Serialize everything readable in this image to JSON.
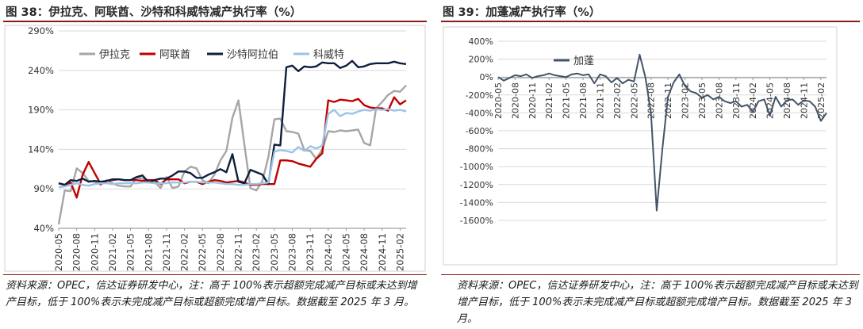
{
  "figures": {
    "left": {
      "title": "图 38：伊拉克、阿联酋、沙特和科威特减产执行率（%）",
      "note": "资料来源：OPEC，信达证券研发中心，注：高于 100%表示超额完成减产目标或未达到增产目标，低于 100%表示未完成减产目标或超额完成增产目标。数据截至 2025 年 3 月。"
    },
    "right": {
      "title": "图 39：加蓬减产执行率（%）",
      "note": "资料来源：OPEC，信达证券研发中心，注：高于 100%表示超额完成减产目标或未达到增产目标，低于 100%表示未完成减产目标或超额完成增产目标。数据截至 2025 年 3 月。"
    }
  },
  "chart_data": [
    {
      "type": "line",
      "ylim": [
        40,
        290
      ],
      "y_ticks": [
        40,
        90,
        140,
        190,
        240,
        290
      ],
      "y_tick_labels": [
        "40%",
        "90%",
        "140%",
        "190%",
        "240%",
        "290%"
      ],
      "x_tick_labels": [
        "2020-05",
        "2020-08",
        "2020-11",
        "2021-02",
        "2021-05",
        "2021-08",
        "2021-11",
        "2022-02",
        "2022-05",
        "2022-08",
        "2022-11",
        "2023-02",
        "2023-05",
        "2023-08",
        "2023-11",
        "2024-02",
        "2024-05",
        "2024-08",
        "2024-11",
        "2025-02"
      ],
      "x": [
        "2020-05",
        "2020-06",
        "2020-07",
        "2020-08",
        "2020-09",
        "2020-10",
        "2020-11",
        "2020-12",
        "2021-01",
        "2021-02",
        "2021-03",
        "2021-04",
        "2021-05",
        "2021-06",
        "2021-07",
        "2021-08",
        "2021-09",
        "2021-10",
        "2021-11",
        "2021-12",
        "2022-01",
        "2022-02",
        "2022-03",
        "2022-04",
        "2022-05",
        "2022-06",
        "2022-07",
        "2022-08",
        "2022-09",
        "2022-10",
        "2022-11",
        "2022-12",
        "2023-01",
        "2023-02",
        "2023-03",
        "2023-04",
        "2023-05",
        "2023-06",
        "2023-07",
        "2023-08",
        "2023-09",
        "2023-10",
        "2023-11",
        "2023-12",
        "2024-01",
        "2024-02",
        "2024-03",
        "2024-04",
        "2024-05",
        "2024-06",
        "2024-07",
        "2024-08",
        "2024-09",
        "2024-10",
        "2024-11",
        "2024-12",
        "2025-01",
        "2025-02",
        "2025-03"
      ],
      "legend_position": "top",
      "grid": "horizontal",
      "series": [
        {
          "name": "伊拉克",
          "color": "#a6a6a6",
          "values": [
            45,
            88,
            87,
            116,
            110,
            100,
            99,
            95,
            101,
            97,
            94,
            93,
            93,
            104,
            103,
            101,
            99,
            91,
            105,
            91,
            93,
            112,
            118,
            116,
            101,
            97,
            108,
            126,
            138,
            180,
            202,
            146,
            91,
            88,
            100,
            130,
            178,
            179,
            163,
            162,
            160,
            139,
            138,
            128,
            140,
            163,
            162,
            164,
            163,
            164,
            165,
            148,
            145,
            192,
            200,
            209,
            214,
            213,
            221
          ]
        },
        {
          "name": "阿联酋",
          "color": "#c00000",
          "values": [
            97,
            95,
            98,
            79,
            108,
            124,
            110,
            96,
            100,
            101,
            102,
            101,
            101,
            101,
            100,
            101,
            101,
            96,
            102,
            102,
            102,
            97,
            99,
            99,
            96,
            99,
            101,
            100,
            98,
            99,
            100,
            98,
            95,
            95,
            96,
            96,
            96,
            126,
            126,
            125,
            122,
            120,
            118,
            128,
            135,
            202,
            200,
            203,
            202,
            201,
            204,
            196,
            193,
            192,
            192,
            189,
            206,
            197,
            202
          ]
        },
        {
          "name": "沙特阿拉伯",
          "color": "#0d1f3c",
          "values": [
            97,
            95,
            101,
            100,
            103,
            99,
            100,
            99,
            100,
            102,
            102,
            101,
            101,
            105,
            107,
            98,
            101,
            103,
            103,
            107,
            112,
            112,
            110,
            104,
            104,
            108,
            111,
            115,
            111,
            134,
            99,
            97,
            114,
            111,
            108,
            96,
            146,
            145,
            244,
            246,
            239,
            245,
            244,
            245,
            250,
            249,
            249,
            243,
            246,
            252,
            244,
            245,
            248,
            249,
            249,
            249,
            251,
            249,
            248
          ]
        },
        {
          "name": "科威特",
          "color": "#9dc3e6",
          "values": [
            92,
            93,
            95,
            97,
            95,
            94,
            96,
            97,
            97,
            96,
            97,
            97,
            97,
            97,
            98,
            98,
            97,
            97,
            97,
            98,
            98,
            98,
            99,
            99,
            98,
            98,
            98,
            97,
            96,
            96,
            95,
            95,
            96,
            96,
            97,
            98,
            137,
            139,
            138,
            136,
            143,
            138,
            144,
            141,
            145,
            185,
            190,
            182,
            186,
            185,
            188,
            190,
            189,
            191,
            190,
            191,
            189,
            190,
            188
          ]
        }
      ]
    },
    {
      "type": "line",
      "ylim": [
        -1600,
        400
      ],
      "y_ticks": [
        400,
        200,
        0,
        -200,
        -400,
        -600,
        -800,
        -1000,
        -1200,
        -1400,
        -1600
      ],
      "y_tick_labels": [
        "400%",
        "200%",
        "0%",
        "-200%",
        "-400%",
        "-600%",
        "-800%",
        "-1000%",
        "-1200%",
        "-1400%",
        "-1600%"
      ],
      "x_tick_labels": [
        "2020-05",
        "2020-08",
        "2020-11",
        "2021-02",
        "2021-05",
        "2021-08",
        "2021-11",
        "2022-02",
        "2022-05",
        "2022-08",
        "2022-11",
        "2023-02",
        "2023-05",
        "2023-08",
        "2023-11",
        "2024-02",
        "2024-05",
        "2024-08",
        "2024-11",
        "2025-02"
      ],
      "x": [
        "2020-05",
        "2020-06",
        "2020-07",
        "2020-08",
        "2020-09",
        "2020-10",
        "2020-11",
        "2020-12",
        "2021-01",
        "2021-02",
        "2021-03",
        "2021-04",
        "2021-05",
        "2021-06",
        "2021-07",
        "2021-08",
        "2021-09",
        "2021-10",
        "2021-11",
        "2021-12",
        "2022-01",
        "2022-02",
        "2022-03",
        "2022-04",
        "2022-05",
        "2022-06",
        "2022-07",
        "2022-08",
        "2022-09",
        "2022-10",
        "2022-11",
        "2022-12",
        "2023-01",
        "2023-02",
        "2023-03",
        "2023-04",
        "2023-05",
        "2023-06",
        "2023-07",
        "2023-08",
        "2023-09",
        "2023-10",
        "2023-11",
        "2023-12",
        "2024-01",
        "2024-02",
        "2024-03",
        "2024-04",
        "2024-05",
        "2024-06",
        "2024-07",
        "2024-08",
        "2024-09",
        "2024-10",
        "2024-11",
        "2024-12",
        "2025-01",
        "2025-02",
        "2025-03"
      ],
      "legend_position": "top-left",
      "grid": "horizontal",
      "series": [
        {
          "name": "加蓬",
          "color": "#44546a",
          "values": [
            0,
            -40,
            -10,
            20,
            10,
            30,
            -10,
            10,
            20,
            40,
            20,
            10,
            0,
            30,
            40,
            20,
            30,
            -70,
            30,
            10,
            -60,
            -10,
            -70,
            -30,
            -50,
            250,
            0,
            -400,
            -1490,
            -810,
            -220,
            -60,
            30,
            -100,
            -160,
            -180,
            -230,
            -200,
            -250,
            -220,
            -270,
            -290,
            -270,
            -330,
            -310,
            -390,
            -270,
            -250,
            -430,
            -220,
            -330,
            -260,
            -250,
            -310,
            -260,
            -270,
            -330,
            -490,
            -400
          ]
        }
      ]
    }
  ]
}
